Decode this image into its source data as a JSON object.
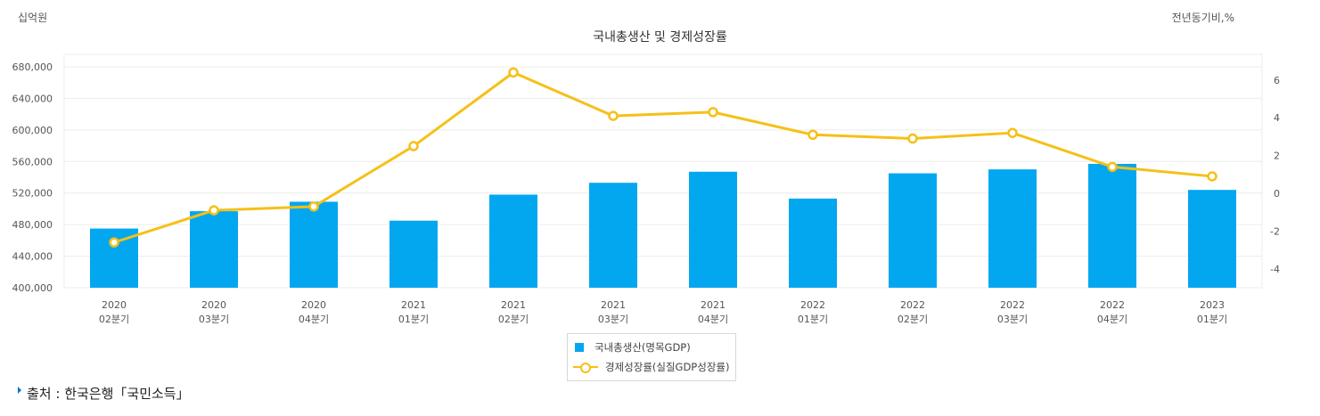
{
  "unit_left": "십억원",
  "unit_right": "전년동기비,%",
  "source": "출처 : 한국은행「국민소득」",
  "colors": {
    "bar": "#03a7f0",
    "line": "#f5c018",
    "grid": "#ececec",
    "axis_text": "#555555"
  },
  "chart_data": {
    "type": "bar",
    "title": "국내총생산 및 경제성장률",
    "categories": [
      [
        "2020",
        "02분기"
      ],
      [
        "2020",
        "03분기"
      ],
      [
        "2020",
        "04분기"
      ],
      [
        "2021",
        "01분기"
      ],
      [
        "2021",
        "02분기"
      ],
      [
        "2021",
        "03분기"
      ],
      [
        "2021",
        "04분기"
      ],
      [
        "2022",
        "01분기"
      ],
      [
        "2022",
        "02분기"
      ],
      [
        "2022",
        "03분기"
      ],
      [
        "2022",
        "04분기"
      ],
      [
        "2023",
        "01분기"
      ]
    ],
    "series": [
      {
        "name": "국내총생산(명목GDP)",
        "type": "bar",
        "axis": "left",
        "values": [
          475000,
          497000,
          509000,
          485000,
          518000,
          533000,
          547000,
          513000,
          545000,
          550000,
          557000,
          524000
        ]
      },
      {
        "name": "경제성장률(실질GDP성장률)",
        "type": "line",
        "axis": "right",
        "values": [
          -2.6,
          -0.9,
          -0.7,
          2.5,
          6.4,
          4.1,
          4.3,
          3.1,
          2.9,
          3.2,
          1.4,
          0.9
        ]
      }
    ],
    "y_left": {
      "min": 400000,
      "max": 680000,
      "ticks": [
        "400,000",
        "440,000",
        "480,000",
        "520,000",
        "560,000",
        "600,000",
        "640,000",
        "680,000"
      ]
    },
    "y_right": {
      "min": -5,
      "max": 6.7,
      "ticks": [
        "-4",
        "-2",
        "0",
        "2",
        "4",
        "6"
      ]
    },
    "grid": true,
    "legend_position": "bottom"
  }
}
